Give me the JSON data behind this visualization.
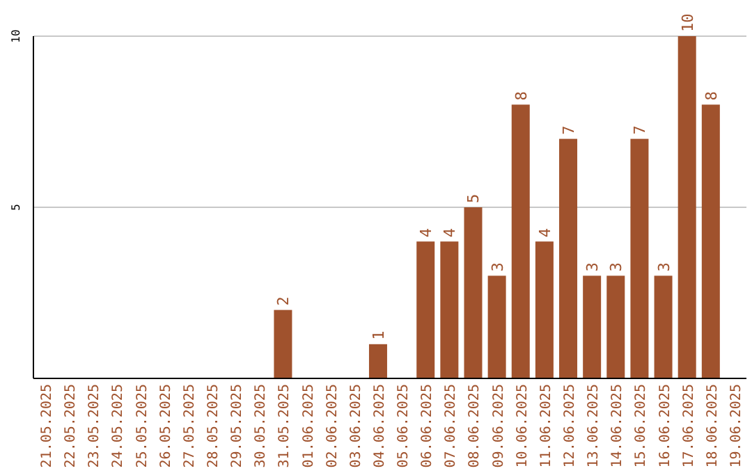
{
  "chart_data": {
    "type": "bar",
    "categories": [
      "21.05.2025",
      "22.05.2025",
      "23.05.2025",
      "24.05.2025",
      "25.05.2025",
      "26.05.2025",
      "27.05.2025",
      "28.05.2025",
      "29.05.2025",
      "30.05.2025",
      "31.05.2025",
      "01.06.2025",
      "02.06.2025",
      "03.06.2025",
      "04.06.2025",
      "05.06.2025",
      "06.06.2025",
      "07.06.2025",
      "08.06.2025",
      "09.06.2025",
      "10.06.2025",
      "11.06.2025",
      "12.06.2025",
      "13.06.2025",
      "14.06.2025",
      "15.06.2025",
      "16.06.2025",
      "17.06.2025",
      "18.06.2025",
      "19.06.2025"
    ],
    "values": [
      0,
      0,
      0,
      0,
      0,
      0,
      0,
      0,
      0,
      0,
      2,
      0,
      0,
      0,
      1,
      0,
      4,
      4,
      5,
      3,
      8,
      4,
      7,
      3,
      3,
      7,
      3,
      10,
      8,
      0
    ],
    "value_labels": [
      null,
      null,
      null,
      null,
      null,
      null,
      null,
      null,
      null,
      null,
      "2",
      null,
      null,
      null,
      "1",
      null,
      "4",
      "4",
      "5",
      "3",
      "8",
      "4",
      "7",
      "3",
      "3",
      "7",
      "3",
      "10",
      "8",
      null
    ],
    "color": "#a0522d",
    "ylim": [
      0,
      10
    ],
    "yticks": [
      5,
      10
    ],
    "grid": "y"
  }
}
